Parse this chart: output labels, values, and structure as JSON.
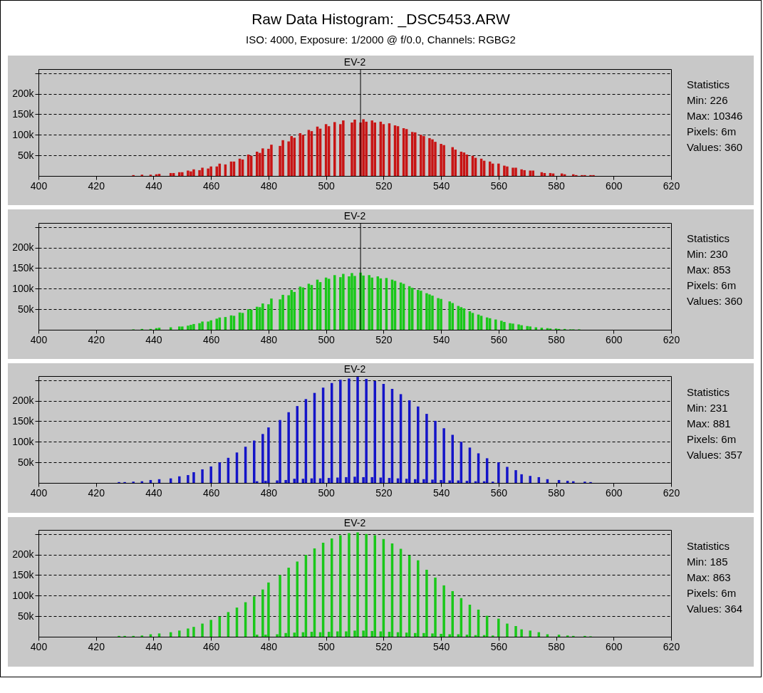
{
  "chart_data": [
    {
      "type": "other",
      "title": "Raw Data Histogram: _DSC5453.ARW",
      "subtitle": "ISO: 4000, Exposure: 1/2000 @ f/0.0, Channels: RGBG2"
    },
    {
      "type": "bar",
      "title": "EV-2",
      "color": "#c81414",
      "xlim": [
        400,
        620
      ],
      "xticks": [
        400,
        420,
        440,
        460,
        480,
        500,
        520,
        540,
        560,
        580,
        600,
        620
      ],
      "ylim": [
        0,
        260000
      ],
      "yticks": [
        {
          "value": 50000,
          "label": "50k"
        },
        {
          "value": 100000,
          "label": "100k"
        },
        {
          "value": 150000,
          "label": "150k"
        },
        {
          "value": 200000,
          "label": "200k"
        },
        {
          "value": 250000,
          "label": null
        }
      ],
      "grid": "y",
      "ref_lines": [
        {
          "axis": "x",
          "value": 512
        }
      ],
      "annotations": [
        "Statistics",
        "Min: 226",
        "Max: 10346",
        "Pixels: 6m",
        "Values: 360"
      ],
      "x": [
        433,
        436,
        439,
        441,
        442,
        446,
        447,
        449,
        450,
        452,
        453,
        454,
        456,
        457,
        459,
        460,
        462,
        463,
        465,
        467,
        468,
        470,
        471,
        473,
        474,
        476,
        477,
        478,
        480,
        481,
        484,
        485,
        487,
        488,
        489,
        491,
        492,
        494,
        495,
        497,
        498,
        500,
        501,
        503,
        505,
        506,
        509,
        510,
        512,
        513,
        514,
        516,
        517,
        519,
        520,
        522,
        524,
        525,
        527,
        528,
        530,
        531,
        533,
        534,
        536,
        537,
        538,
        540,
        541,
        544,
        545,
        547,
        548,
        549,
        551,
        552,
        554,
        555,
        557,
        558,
        560,
        562,
        563,
        565,
        566,
        568,
        569,
        571,
        572,
        575,
        576,
        578,
        579,
        582,
        583,
        586,
        587,
        589,
        590,
        592,
        593
      ],
      "values": [
        2000,
        3000,
        3000,
        4000,
        5000,
        7000,
        7000,
        9000,
        9000,
        13000,
        11000,
        16000,
        14000,
        20000,
        18000,
        23000,
        23000,
        30000,
        28000,
        35000,
        35000,
        42000,
        40000,
        52000,
        49000,
        59000,
        56000,
        67000,
        66000,
        76000,
        73000,
        87000,
        84000,
        97000,
        93000,
        104000,
        100000,
        112000,
        109000,
        120000,
        115000,
        126000,
        121000,
        131000,
        126000,
        135000,
        130000,
        137000,
        130000,
        138000,
        132000,
        135000,
        130000,
        132000,
        126000,
        128000,
        123000,
        121000,
        116000,
        114000,
        107000,
        106000,
        100000,
        97000,
        92000,
        89000,
        83000,
        78000,
        75000,
        70000,
        64000,
        59000,
        57000,
        52000,
        49000,
        44000,
        42000,
        37000,
        35000,
        30000,
        30000,
        25000,
        23000,
        20000,
        20000,
        16000,
        14000,
        13000,
        13000,
        9000,
        7000,
        7000,
        6000,
        6000,
        4000,
        4000,
        2000,
        2000,
        2000,
        2000,
        2000
      ]
    },
    {
      "type": "bar",
      "title": "EV-2",
      "color": "#19c819",
      "xlim": [
        400,
        620
      ],
      "xticks": [
        400,
        420,
        440,
        460,
        480,
        500,
        520,
        540,
        560,
        580,
        600,
        620
      ],
      "ylim": [
        0,
        260000
      ],
      "yticks": [
        {
          "value": 50000,
          "label": "50k"
        },
        {
          "value": 100000,
          "label": "100k"
        },
        {
          "value": 150000,
          "label": "150k"
        },
        {
          "value": 200000,
          "label": "200k"
        },
        {
          "value": 250000,
          "label": null
        }
      ],
      "grid": "y",
      "ref_lines": [
        {
          "axis": "x",
          "value": 512
        }
      ],
      "annotations": [
        "Statistics",
        "Min: 230",
        "Max: 853",
        "Pixels: 6m",
        "Values: 360"
      ],
      "x": [
        433,
        436,
        439,
        441,
        442,
        446,
        449,
        450,
        452,
        453,
        454,
        456,
        457,
        459,
        460,
        462,
        463,
        465,
        467,
        468,
        470,
        471,
        473,
        474,
        476,
        477,
        478,
        480,
        481,
        484,
        485,
        487,
        488,
        489,
        491,
        492,
        494,
        495,
        497,
        498,
        500,
        501,
        503,
        505,
        506,
        508,
        509,
        510,
        512,
        513,
        515,
        516,
        518,
        519,
        521,
        523,
        524,
        526,
        527,
        529,
        530,
        532,
        533,
        535,
        536,
        537,
        539,
        540,
        543,
        544,
        546,
        547,
        548,
        550,
        551,
        553,
        554,
        556,
        557,
        559,
        561,
        562,
        564,
        565,
        567,
        568,
        570,
        571,
        573,
        575,
        577,
        578,
        580,
        581,
        583,
        585,
        586,
        588
      ],
      "values": [
        1000,
        2000,
        2000,
        4000,
        5000,
        6000,
        8000,
        8000,
        10000,
        12000,
        14000,
        16000,
        20000,
        20000,
        23000,
        27000,
        30000,
        31000,
        35000,
        34000,
        42000,
        41000,
        50000,
        49000,
        56000,
        55000,
        64000,
        62000,
        76000,
        74000,
        85000,
        84000,
        97000,
        92000,
        105000,
        103000,
        112000,
        109000,
        122000,
        116000,
        127000,
        124000,
        133000,
        128000,
        136000,
        130000,
        138000,
        131000,
        139000,
        132000,
        133000,
        127000,
        130000,
        125000,
        126000,
        122000,
        119000,
        115000,
        112000,
        106000,
        102000,
        97000,
        95000,
        89000,
        86000,
        83000,
        77000,
        75000,
        69000,
        65000,
        58000,
        55000,
        52000,
        45000,
        41000,
        37000,
        34000,
        30000,
        28000,
        25000,
        22000,
        19000,
        16000,
        15000,
        13000,
        11000,
        9000,
        8000,
        6000,
        5000,
        4000,
        3000,
        3000,
        2000,
        2000,
        1000,
        1000,
        1000
      ]
    },
    {
      "type": "bar",
      "title": "EV-2",
      "color": "#1414c8",
      "xlim": [
        400,
        620
      ],
      "xticks": [
        400,
        420,
        440,
        460,
        480,
        500,
        520,
        540,
        560,
        580,
        600,
        620
      ],
      "ylim": [
        0,
        260000
      ],
      "yticks": [
        {
          "value": 50000,
          "label": "50k"
        },
        {
          "value": 100000,
          "label": "100k"
        },
        {
          "value": 150000,
          "label": "150k"
        },
        {
          "value": 200000,
          "label": "200k"
        },
        {
          "value": 250000,
          "label": null
        }
      ],
      "grid": "y",
      "annotations": [
        "Statistics",
        "Min: 231",
        "Max: 881",
        "Pixels: 6m",
        "Values: 357"
      ],
      "x": [
        428,
        430,
        433,
        436,
        439,
        442,
        446,
        449,
        452,
        454,
        457,
        460,
        463,
        466,
        469,
        472,
        475,
        476,
        478,
        479,
        480,
        483,
        484,
        486,
        487,
        489,
        490,
        492,
        493,
        495,
        496,
        498,
        499,
        501,
        502,
        504,
        505,
        507,
        508,
        510,
        511,
        513,
        514,
        516,
        517,
        519,
        520,
        522,
        523,
        525,
        526,
        528,
        529,
        531,
        532,
        534,
        535,
        537,
        538,
        540,
        541,
        543,
        544,
        546,
        547,
        549,
        550,
        552,
        553,
        555,
        556,
        558,
        560,
        563,
        566,
        568,
        571,
        574,
        577,
        581,
        584,
        586,
        590,
        592
      ],
      "values": [
        2000,
        2000,
        3000,
        4000,
        7000,
        9000,
        11000,
        16000,
        19000,
        26000,
        33000,
        40000,
        50000,
        61000,
        74000,
        88000,
        103000,
        4000,
        119000,
        5000,
        135000,
        6000,
        153000,
        7000,
        172000,
        10000,
        187000,
        10000,
        204000,
        11000,
        219000,
        11000,
        232000,
        12000,
        243000,
        13000,
        251000,
        14000,
        254000,
        15000,
        258000,
        14000,
        253000,
        14000,
        248000,
        13000,
        241000,
        12000,
        229000,
        11000,
        216000,
        10000,
        201000,
        9000,
        186000,
        9000,
        168000,
        8000,
        151000,
        7000,
        133000,
        6000,
        117000,
        6000,
        100000,
        5000,
        86000,
        4000,
        72000,
        4000,
        60000,
        3000,
        50000,
        39000,
        31000,
        21000,
        17000,
        14000,
        9000,
        7000,
        5000,
        4000,
        3000,
        2000
      ]
    },
    {
      "type": "bar",
      "title": "EV-2",
      "color": "#19c819",
      "xlim": [
        400,
        620
      ],
      "xticks": [
        400,
        420,
        440,
        460,
        480,
        500,
        520,
        540,
        560,
        580,
        600,
        620
      ],
      "ylim": [
        0,
        260000
      ],
      "yticks": [
        {
          "value": 50000,
          "label": "50k"
        },
        {
          "value": 100000,
          "label": "100k"
        },
        {
          "value": 150000,
          "label": "150k"
        },
        {
          "value": 200000,
          "label": "200k"
        },
        {
          "value": 250000,
          "label": null
        }
      ],
      "grid": "y",
      "annotations": [
        "Statistics",
        "Min: 185",
        "Max: 863",
        "Pixels: 6m",
        "Values: 364"
      ],
      "x": [
        428,
        430,
        433,
        436,
        439,
        442,
        446,
        449,
        452,
        454,
        457,
        460,
        463,
        466,
        469,
        472,
        475,
        476,
        478,
        479,
        480,
        483,
        484,
        486,
        487,
        489,
        490,
        492,
        493,
        495,
        496,
        498,
        499,
        501,
        502,
        504,
        505,
        507,
        508,
        510,
        511,
        513,
        514,
        516,
        517,
        519,
        520,
        522,
        523,
        525,
        526,
        528,
        529,
        531,
        532,
        534,
        535,
        537,
        538,
        540,
        541,
        543,
        544,
        546,
        547,
        549,
        550,
        552,
        553,
        555,
        556,
        558,
        560,
        563,
        566,
        568,
        571,
        574,
        577,
        581,
        584,
        586,
        590,
        592
      ],
      "values": [
        2000,
        2000,
        2000,
        3000,
        6000,
        8000,
        11000,
        15000,
        20000,
        24000,
        32000,
        41000,
        49000,
        60000,
        71000,
        84000,
        98000,
        5000,
        115000,
        5000,
        132000,
        6000,
        150000,
        9000,
        168000,
        10000,
        183000,
        11000,
        199000,
        12000,
        215000,
        11000,
        229000,
        12000,
        239000,
        13000,
        247000,
        13000,
        252000,
        15000,
        254000,
        15000,
        250000,
        14000,
        247000,
        13000,
        238000,
        12000,
        227000,
        11000,
        214000,
        10000,
        198000,
        9000,
        186000,
        9000,
        163000,
        8000,
        144000,
        7000,
        125000,
        6000,
        111000,
        6000,
        94000,
        5000,
        78000,
        4000,
        66000,
        4000,
        51000,
        3000,
        44000,
        32000,
        26000,
        18000,
        15000,
        11000,
        6000,
        5000,
        3000,
        2000,
        2000,
        1000
      ]
    }
  ]
}
